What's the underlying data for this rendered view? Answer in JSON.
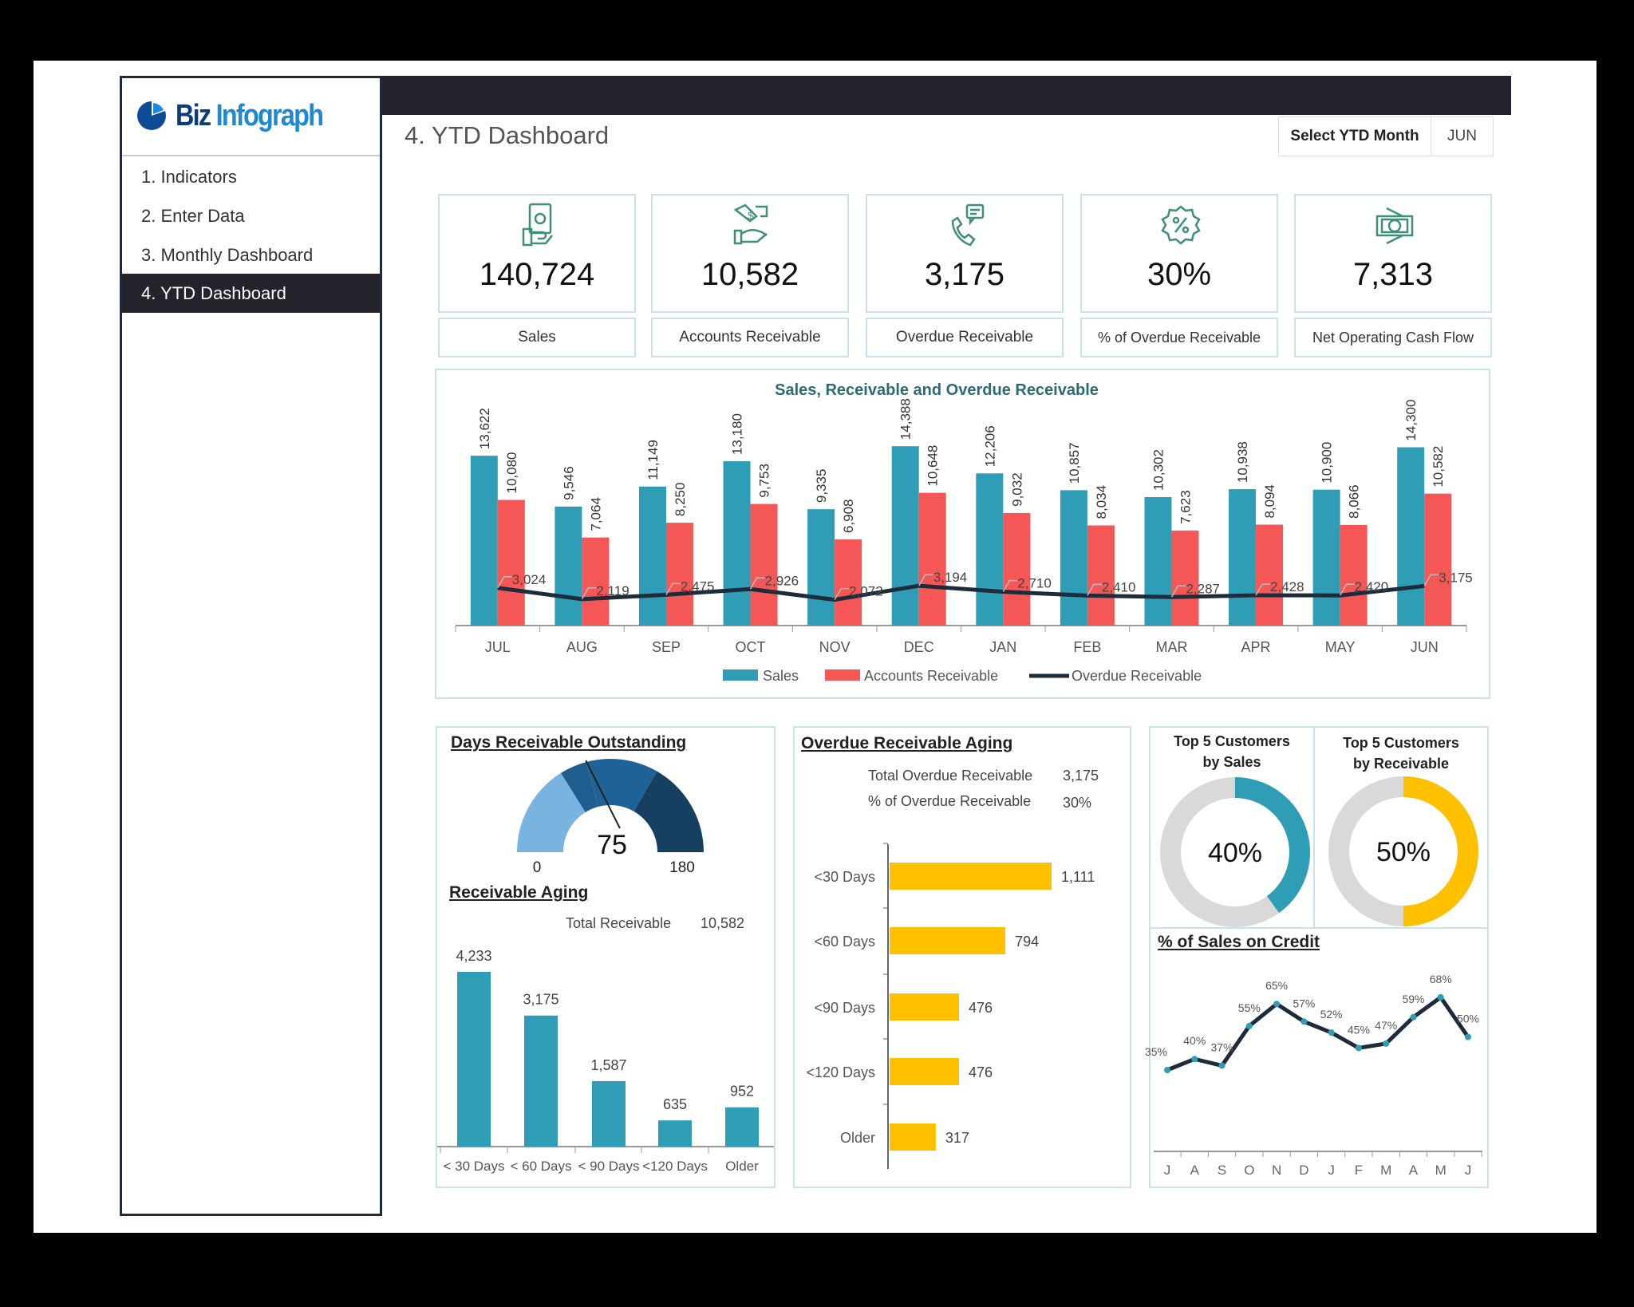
{
  "app": {
    "logo_text_1": "Biz",
    "logo_text_2": "Infograph",
    "page_title": "4. YTD Dashboard"
  },
  "sidebar": {
    "items": [
      {
        "label": "1. Indicators",
        "active": false
      },
      {
        "label": "2. Enter Data",
        "active": false
      },
      {
        "label": "3. Monthly Dashboard",
        "active": false
      },
      {
        "label": "4. YTD Dashboard",
        "active": true
      }
    ]
  },
  "ytd_selector": {
    "label": "Select YTD Month",
    "value": "JUN"
  },
  "kpis": [
    {
      "value": "140,724",
      "label": "Sales",
      "icon": "cash-in-hand-icon"
    },
    {
      "value": "10,582",
      "label": "Accounts Receivable",
      "icon": "handshake-money-icon"
    },
    {
      "value": "3,175",
      "label": "Overdue Receivable",
      "icon": "phone-message-icon"
    },
    {
      "value": "30%",
      "label": "% of Overdue Receivable",
      "icon": "percent-badge-icon"
    },
    {
      "value": "7,313",
      "label": "Net Operating Cash Flow",
      "icon": "banknote-icon"
    }
  ],
  "colors": {
    "sales": "#2e9db5",
    "receivable": "#f55656",
    "overdue": "#1e2b3a",
    "gold": "#ffc000",
    "icon": "#3f8f78",
    "grey": "#d9d9d9"
  },
  "chart_data": [
    {
      "type": "bar",
      "title": "Sales, Receivable and Overdue Receivable",
      "categories": [
        "JUL",
        "AUG",
        "SEP",
        "OCT",
        "NOV",
        "DEC",
        "JAN",
        "FEB",
        "MAR",
        "APR",
        "MAY",
        "JUN"
      ],
      "series": [
        {
          "name": "Sales",
          "type": "bar",
          "values": [
            13622,
            9546,
            11149,
            13180,
            9335,
            14388,
            12206,
            10857,
            10302,
            10938,
            10900,
            14300
          ]
        },
        {
          "name": "Accounts Receivable",
          "type": "bar",
          "values": [
            10080,
            7064,
            8250,
            9753,
            6908,
            10648,
            9032,
            8034,
            7623,
            8094,
            8066,
            10582
          ]
        },
        {
          "name": "Overdue Receivable",
          "type": "line",
          "values": [
            3024,
            2119,
            2475,
            2926,
            2072,
            3194,
            2710,
            2410,
            2287,
            2428,
            2420,
            3175
          ]
        }
      ],
      "legend": "bottom",
      "grid": false
    },
    {
      "type": "gauge",
      "title": "Days Receivable Outstanding",
      "value": 75,
      "min": 0,
      "max": 180,
      "min_label": "0",
      "max_label": "180",
      "value_label": "75"
    },
    {
      "type": "bar",
      "title": "Receivable Aging",
      "summary_label": "Total Receivable",
      "summary_value": "10,582",
      "categories": [
        "< 30 Days",
        "< 60 Days",
        "< 90 Days",
        "<120 Days",
        "Older"
      ],
      "values": [
        4233,
        3175,
        1587,
        635,
        952
      ],
      "value_labels": [
        "4,233",
        "3,175",
        "1,587",
        "635",
        "952"
      ]
    },
    {
      "type": "bar",
      "orientation": "horizontal",
      "title": "Overdue Receivable Aging",
      "summary": [
        {
          "label": "Total  Overdue Receivable",
          "value": "3,175"
        },
        {
          "label": "% of Overdue Receivable",
          "value": "30%"
        }
      ],
      "categories": [
        "<30 Days",
        "<60 Days",
        "<90 Days",
        "<120 Days",
        "Older"
      ],
      "values": [
        1111,
        794,
        476,
        476,
        317
      ],
      "value_labels": [
        "1,111",
        "794",
        "476",
        "476",
        "317"
      ]
    },
    {
      "type": "pie",
      "title": "Top 5 Customers by Sales",
      "title_line1": "Top 5 Customers",
      "title_line2": "by Sales",
      "value": 40,
      "label": "40%"
    },
    {
      "type": "pie",
      "title": "Top 5 Customers by Receivable",
      "title_line1": "Top 5 Customers",
      "title_line2": "by Receivable",
      "value": 50,
      "label": "50%"
    },
    {
      "type": "line",
      "title": "% of Sales on Credit",
      "categories": [
        "J",
        "A",
        "S",
        "O",
        "N",
        "D",
        "J",
        "F",
        "M",
        "A",
        "M",
        "J"
      ],
      "values": [
        35,
        40,
        37,
        55,
        65,
        57,
        52,
        45,
        47,
        59,
        68,
        50
      ],
      "value_labels": [
        "35%",
        "40%",
        "37%",
        "55%",
        "65%",
        "57%",
        "52%",
        "45%",
        "47%",
        "59%",
        "68%",
        "50%"
      ]
    }
  ]
}
